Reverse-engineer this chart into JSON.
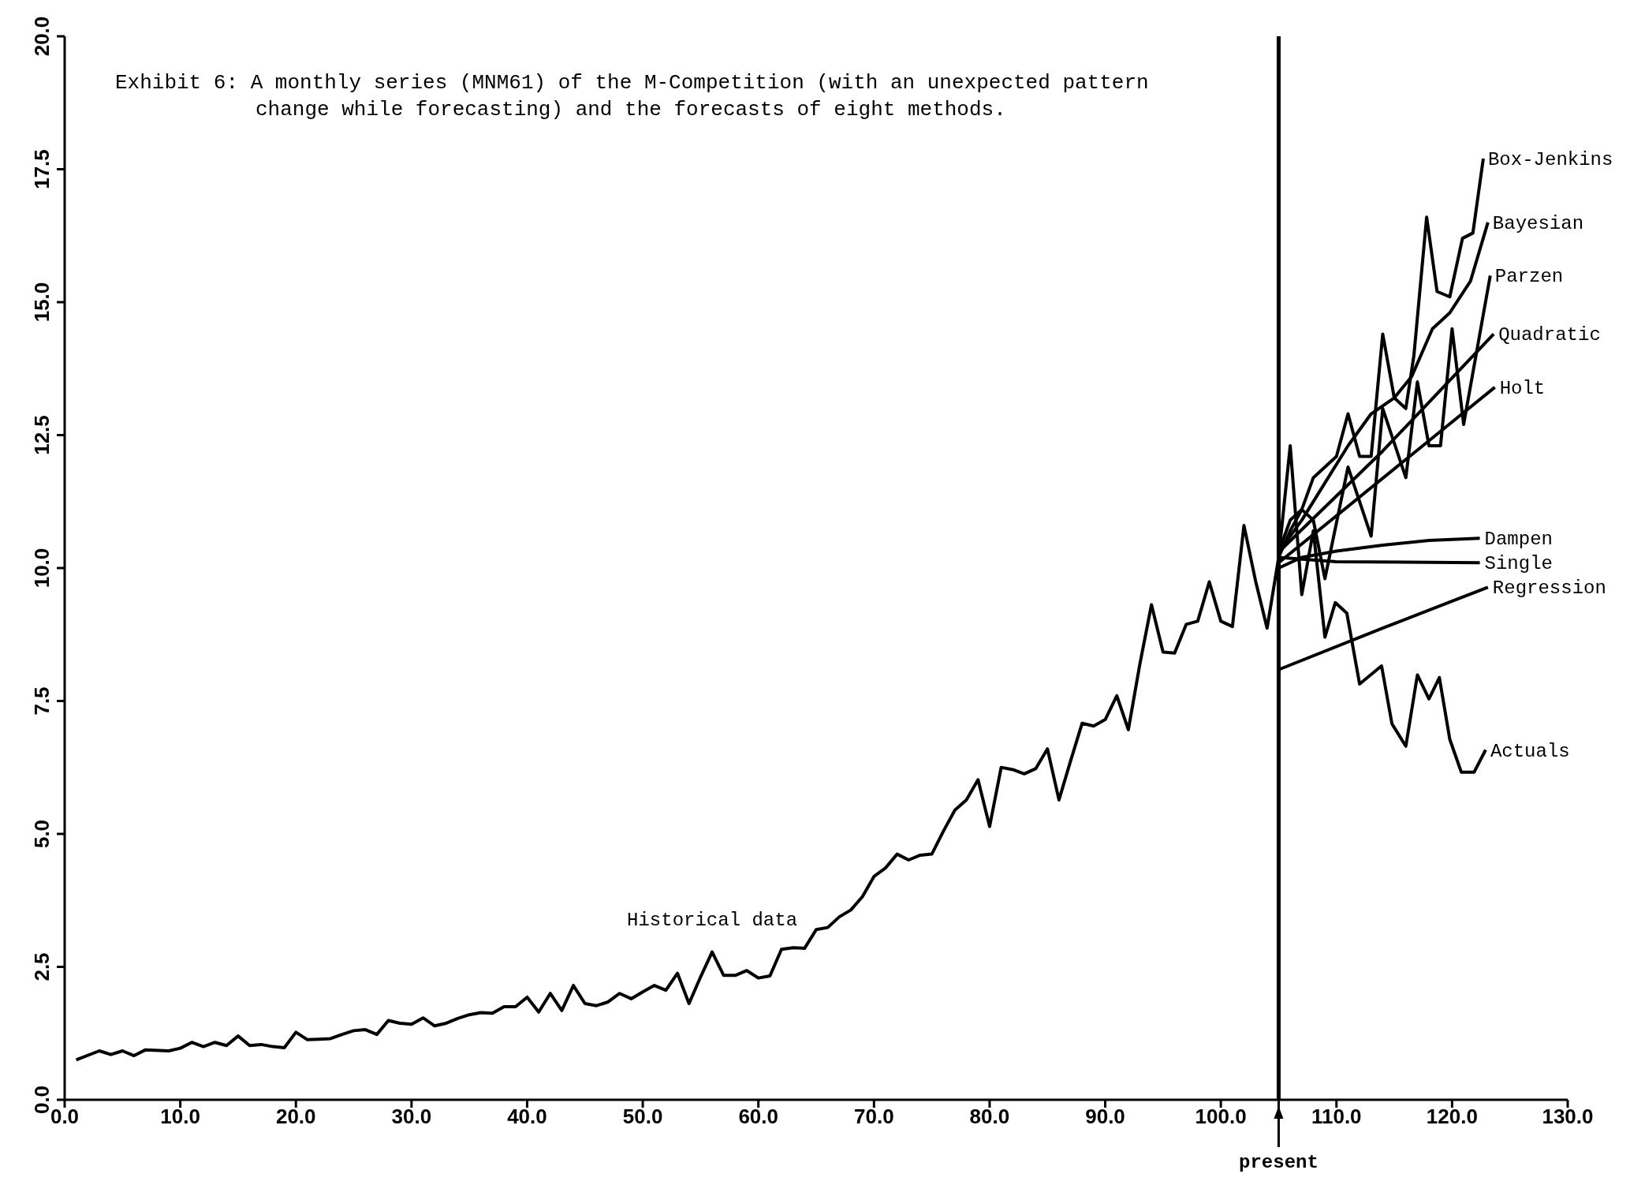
{
  "chart_data": {
    "type": "line",
    "title": "Exhibit 6: A monthly series (MNM61) of the M-Competition (with an unexpected pattern change while forecasting) and the forecasts of eight methods.",
    "xlim": [
      0,
      130
    ],
    "xticks": [
      {
        "value": 0,
        "label": "0.0"
      },
      {
        "value": 10,
        "label": "10.0"
      },
      {
        "value": 20,
        "label": "20.0"
      },
      {
        "value": 30,
        "label": "30.0"
      },
      {
        "value": 40,
        "label": "40.0"
      },
      {
        "value": 50,
        "label": "50.0"
      },
      {
        "value": 60,
        "label": "60.0"
      },
      {
        "value": 70,
        "label": "70.0"
      },
      {
        "value": 80,
        "label": "80.0"
      },
      {
        "value": 90,
        "label": "90.0"
      },
      {
        "value": 100,
        "label": "100.0"
      },
      {
        "value": 110,
        "label": "110.0"
      },
      {
        "value": 120,
        "label": "120.0"
      },
      {
        "value": 130,
        "label": "130.0"
      }
    ],
    "ylim": [
      0,
      20
    ],
    "yticks": [
      {
        "value": 0,
        "label": "0.0"
      },
      {
        "value": 2.5,
        "label": "2.5"
      },
      {
        "value": 5,
        "label": "5.0"
      },
      {
        "value": 7.5,
        "label": "7.5"
      },
      {
        "value": 10,
        "label": "10.0"
      },
      {
        "value": 12.5,
        "label": "12.5"
      },
      {
        "value": 15,
        "label": "15.0"
      },
      {
        "value": 17.5,
        "label": "17.5"
      },
      {
        "value": 20,
        "label": "20.0"
      }
    ],
    "grid": false,
    "legend": false,
    "ref_lines": [
      {
        "axis": "x",
        "value": 105,
        "label": "present"
      }
    ],
    "annotations": [
      {
        "text": "Historical data",
        "x": 56,
        "y": 2.78
      }
    ],
    "series": [
      {
        "name": "Actuals",
        "color": "#000000",
        "x": [
          1,
          3,
          4,
          5,
          6,
          7,
          9,
          10,
          11,
          12,
          13,
          14,
          15,
          16,
          17,
          18,
          19,
          20,
          21,
          22,
          23,
          24,
          25,
          26,
          27,
          28,
          29,
          30,
          31,
          32,
          33,
          34,
          35,
          36,
          37,
          38,
          39,
          40,
          41,
          42,
          43,
          44,
          45,
          46,
          47,
          48,
          49,
          50,
          51,
          52,
          53,
          54,
          55,
          56,
          57,
          58,
          59,
          60,
          61,
          62,
          63,
          64,
          65,
          66,
          67,
          68,
          69,
          70,
          71,
          72,
          73,
          74,
          75,
          76,
          77,
          78,
          79,
          80,
          81,
          82,
          83,
          84,
          85,
          86,
          87,
          88,
          89,
          90,
          91,
          92,
          93,
          94,
          95,
          96,
          97,
          98,
          99,
          100,
          101,
          102,
          103,
          104,
          105,
          106,
          107,
          108,
          109,
          109.9,
          110.9,
          112,
          113.9,
          114.8,
          116,
          117,
          118,
          118.9,
          119.8,
          120.8,
          121.9,
          122.9
        ],
        "values": [
          0.75,
          0.92,
          0.85,
          0.92,
          0.83,
          0.94,
          0.92,
          0.97,
          1.08,
          1.0,
          1.08,
          1.02,
          1.2,
          1.02,
          1.04,
          1.0,
          0.98,
          1.27,
          1.13,
          1.14,
          1.15,
          1.23,
          1.3,
          1.32,
          1.23,
          1.49,
          1.44,
          1.42,
          1.54,
          1.39,
          1.44,
          1.53,
          1.6,
          1.64,
          1.63,
          1.75,
          1.75,
          1.93,
          1.65,
          2.0,
          1.68,
          2.15,
          1.81,
          1.77,
          1.84,
          2.0,
          1.9,
          2.03,
          2.15,
          2.06,
          2.38,
          1.81,
          2.31,
          2.78,
          2.34,
          2.34,
          2.43,
          2.29,
          2.33,
          2.83,
          2.86,
          2.85,
          3.2,
          3.24,
          3.44,
          3.57,
          3.82,
          4.2,
          4.36,
          4.62,
          4.51,
          4.6,
          4.62,
          5.05,
          5.45,
          5.64,
          6.02,
          5.14,
          6.25,
          6.21,
          6.13,
          6.23,
          6.6,
          5.64,
          6.37,
          7.08,
          7.03,
          7.15,
          7.6,
          6.96,
          8.2,
          9.31,
          8.42,
          8.4,
          8.94,
          9.0,
          9.74,
          9.0,
          8.9,
          10.8,
          9.76,
          8.87,
          10.2,
          12.3,
          9.5,
          10.7,
          8.7,
          9.35,
          9.15,
          7.82,
          8.16,
          7.07,
          6.65,
          7.99,
          7.54,
          7.94,
          6.78,
          6.16,
          6.16,
          6.58
        ]
      },
      {
        "name": "Box-Jenkins",
        "color": "#000000",
        "x": [
          105,
          106,
          107,
          108,
          109,
          110,
          111,
          112,
          113,
          114,
          115,
          116,
          116.7,
          117.8,
          118.7,
          119.8,
          120.9,
          121.8,
          122.7
        ],
        "values": [
          10.3,
          10.9,
          11.1,
          11.7,
          11.9,
          12.1,
          12.9,
          12.1,
          12.1,
          14.4,
          13.2,
          13.0,
          14.0,
          16.6,
          15.2,
          15.1,
          16.2,
          16.3,
          17.7
        ]
      },
      {
        "name": "Bayesian",
        "color": "#000000",
        "x": [
          105,
          107,
          109,
          111,
          113,
          115,
          116.5,
          118.3,
          119.8,
          121.6,
          123.1
        ],
        "values": [
          10.3,
          10.9,
          11.6,
          12.3,
          12.9,
          13.2,
          13.6,
          14.5,
          14.8,
          15.4,
          16.5
        ]
      },
      {
        "name": "Parzen",
        "color": "#000000",
        "x": [
          105,
          106,
          107,
          108,
          109,
          111,
          113,
          114,
          116,
          117,
          118,
          119,
          120,
          121,
          123.3
        ],
        "values": [
          10.2,
          10.7,
          11.1,
          10.9,
          9.8,
          11.9,
          10.6,
          13.0,
          11.7,
          13.5,
          12.3,
          12.3,
          14.5,
          12.7,
          15.5
        ]
      },
      {
        "name": "Quadratic",
        "color": "#000000",
        "x": [
          105,
          114,
          123.6
        ],
        "values": [
          10.3,
          12.2,
          14.4
        ]
      },
      {
        "name": "Holt",
        "color": "#000000",
        "x": [
          105,
          123.7
        ],
        "values": [
          10.1,
          13.4
        ]
      },
      {
        "name": "Dampen",
        "color": "#000000",
        "x": [
          105,
          107,
          110,
          114,
          118,
          122.4
        ],
        "values": [
          10.0,
          10.2,
          10.32,
          10.43,
          10.52,
          10.56
        ]
      },
      {
        "name": "Single",
        "color": "#000000",
        "x": [
          105,
          110,
          122.4
        ],
        "values": [
          10.2,
          10.12,
          10.1
        ]
      },
      {
        "name": "Regression",
        "color": "#000000",
        "x": [
          105,
          114,
          123.1
        ],
        "values": [
          8.09,
          8.87,
          9.64
        ]
      }
    ]
  }
}
